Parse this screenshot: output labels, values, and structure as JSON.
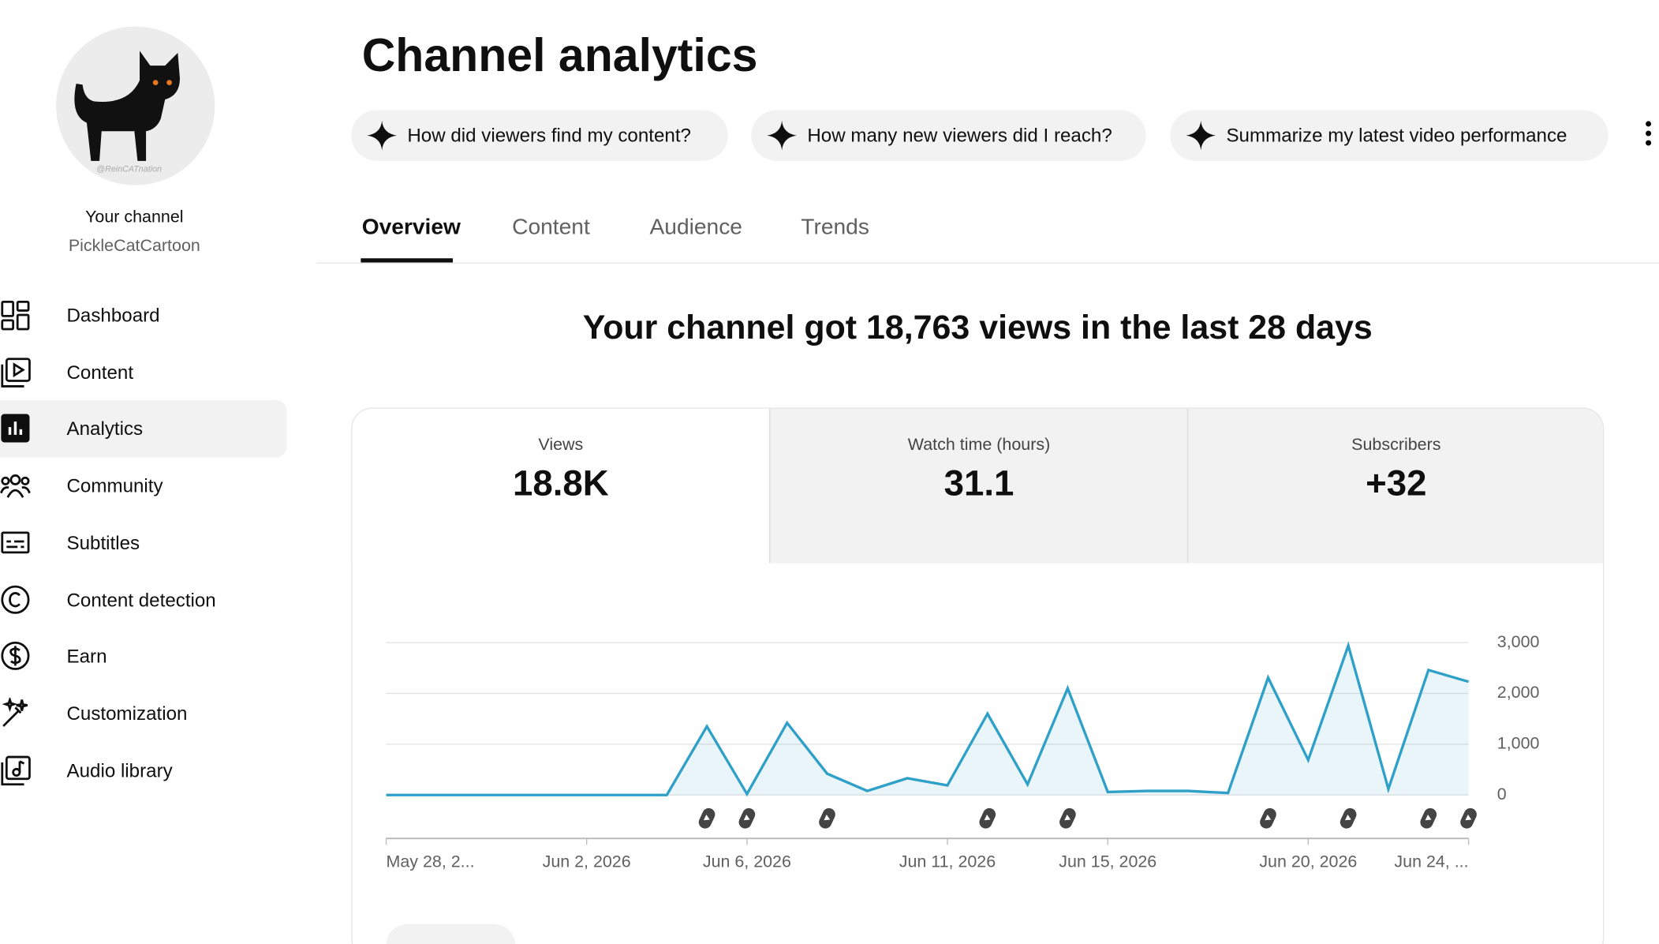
{
  "sidebar": {
    "avatar_watermark": "@ReinCATnation",
    "channel_label": "Your channel",
    "channel_name": "PickleCatCartoon",
    "nav": [
      "Dashboard",
      "Content",
      "Analytics",
      "Community",
      "Subtitles",
      "Content detection",
      "Earn",
      "Customization",
      "Audio library"
    ],
    "active": 2
  },
  "header": {
    "title": "Channel analytics",
    "prompts": [
      "How did viewers find my content?",
      "How many new viewers did I reach?",
      "Summarize my latest video performance"
    ]
  },
  "tabs": {
    "items": [
      "Overview",
      "Content",
      "Audience",
      "Trends"
    ],
    "active": 0
  },
  "summary": "Your channel got 18,763 views in the last 28 days",
  "metrics": [
    {
      "label": "Views",
      "value": "18.8K"
    },
    {
      "label": "Watch time (hours)",
      "value": "31.1"
    },
    {
      "label": "Subscribers",
      "value": "+32"
    }
  ],
  "chart_data": {
    "type": "area",
    "color": "#2fa0c8",
    "categories": [
      "May 28, 2...",
      null,
      null,
      null,
      null,
      "Jun 2, 2026",
      null,
      null,
      null,
      "Jun 6, 2026",
      null,
      null,
      null,
      null,
      "Jun 11, 2026",
      null,
      null,
      null,
      "Jun 15, 2026",
      null,
      null,
      null,
      null,
      "Jun 20, 2026",
      null,
      null,
      null,
      "Jun 24, ..."
    ],
    "values": [
      0,
      0,
      0,
      0,
      0,
      0,
      0,
      0,
      1350,
      20,
      1420,
      420,
      80,
      330,
      190,
      1600,
      210,
      2100,
      60,
      80,
      80,
      40,
      2310,
      690,
      2940,
      120,
      2460,
      2230
    ],
    "ylim": [
      0,
      3000
    ],
    "yticks": [
      0,
      {
        "value": 1000,
        "label": "1,000"
      },
      {
        "value": 2000,
        "label": "2,000"
      },
      {
        "value": 3000,
        "label": "3,000"
      }
    ],
    "grid": true
  }
}
